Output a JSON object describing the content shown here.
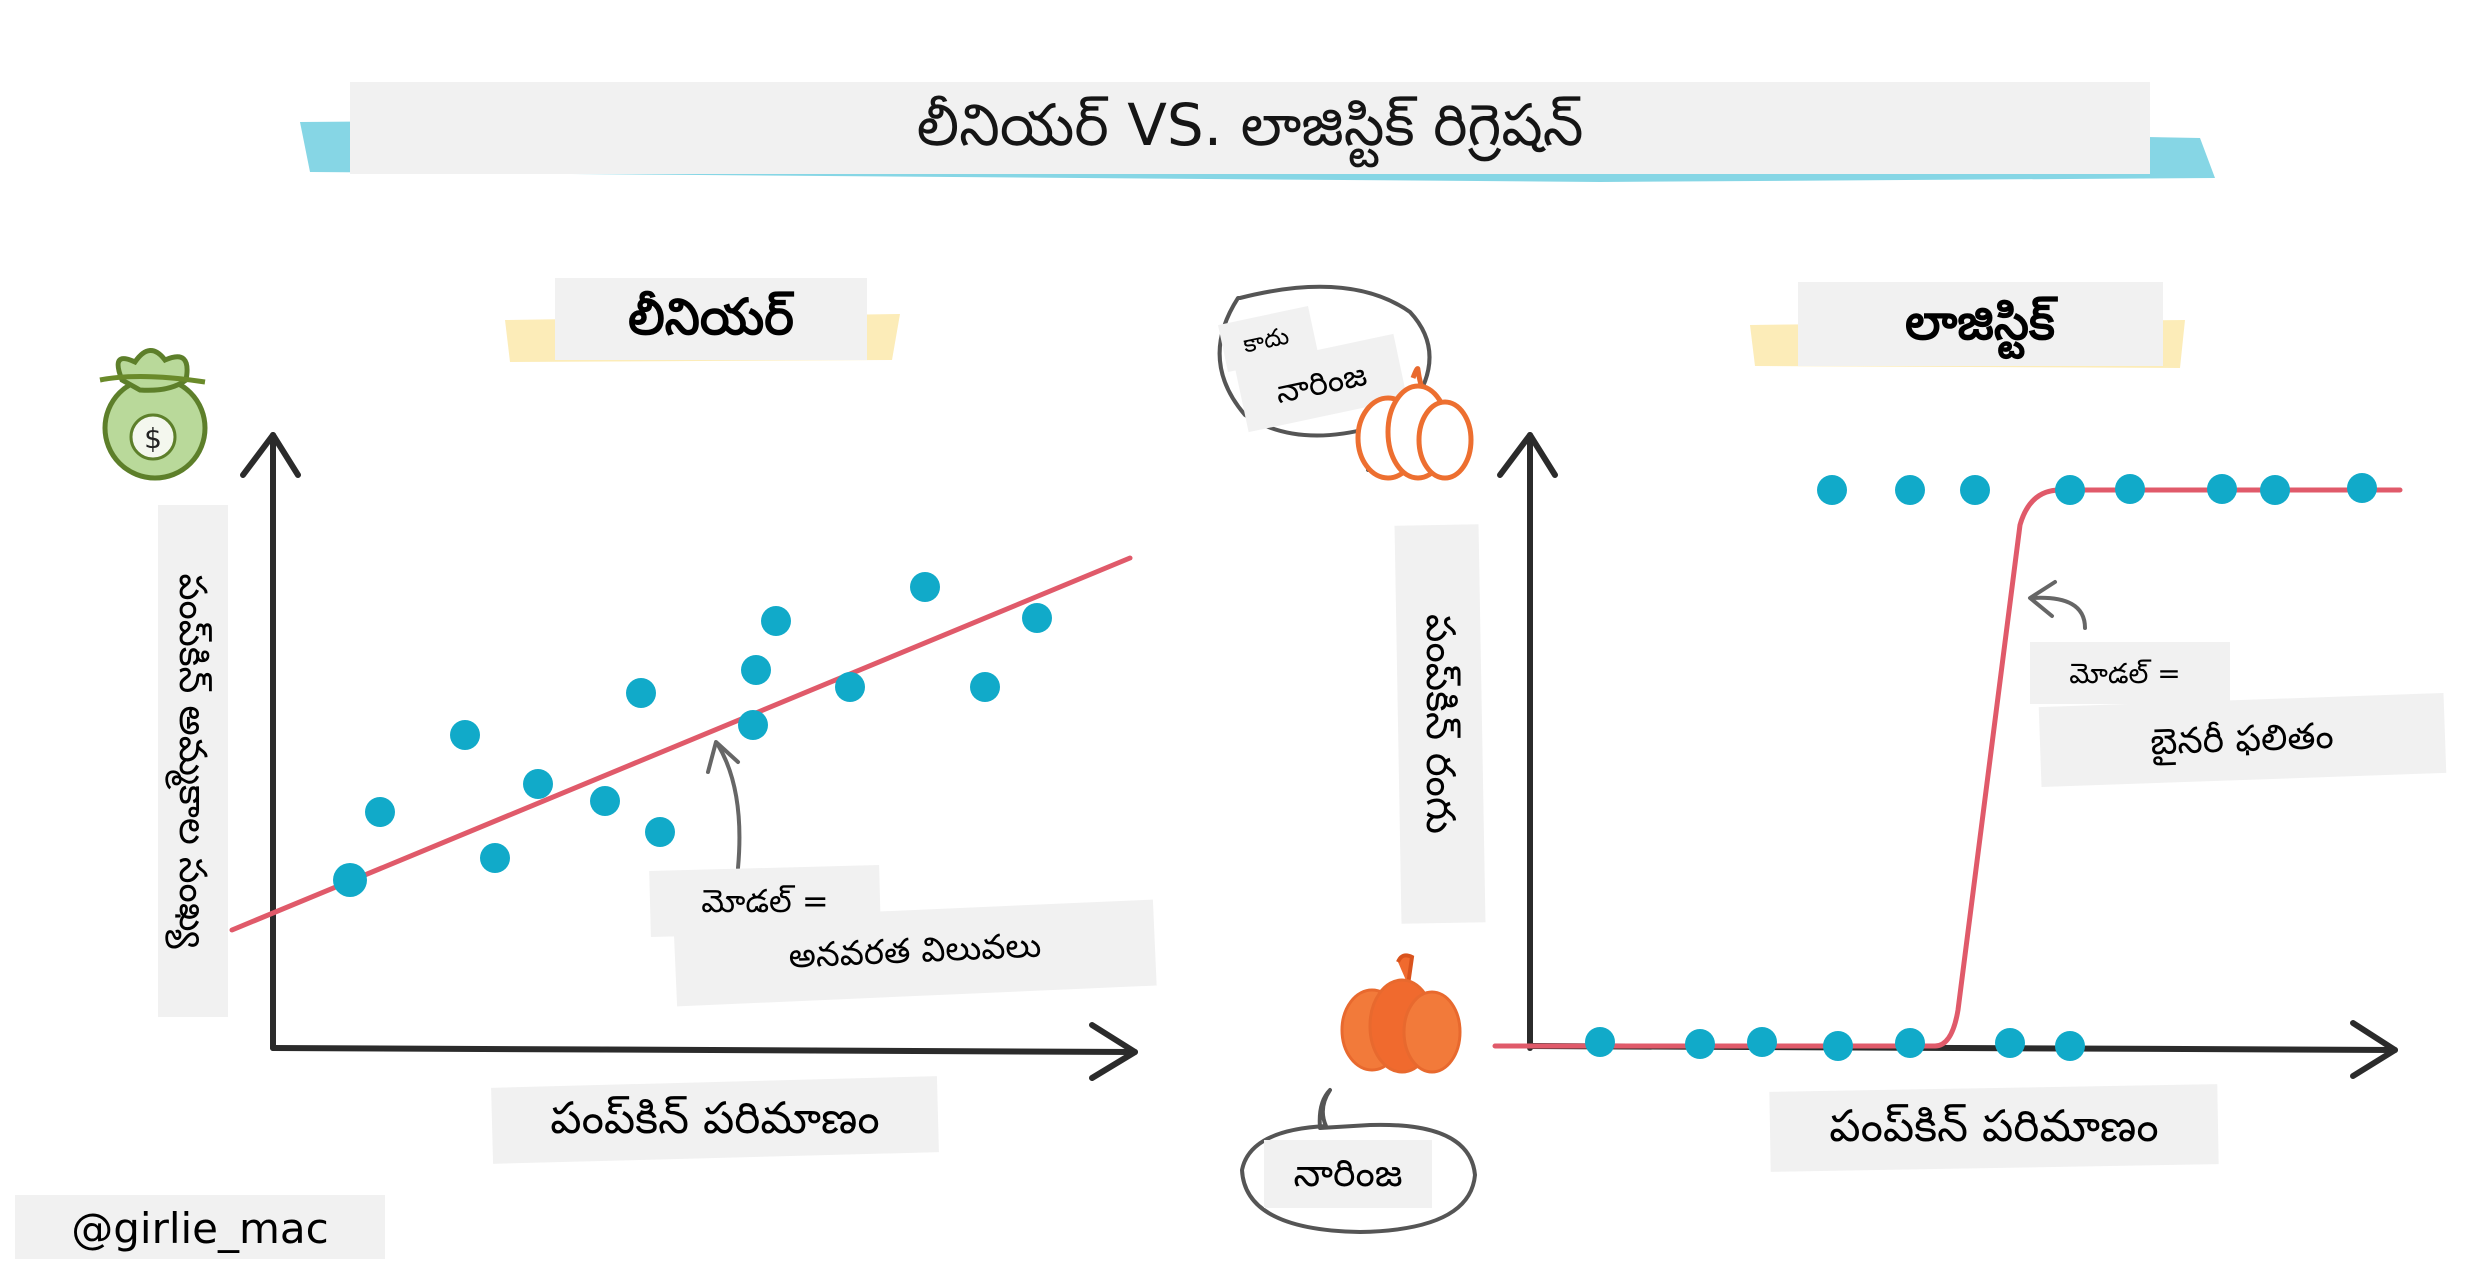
{
  "title": "లీనియర్ VS. లాజిస్టిక్ రిగ్రెషన్",
  "credit": "@girlie_mac",
  "colors": {
    "dot": "#11aac9",
    "line": "#e05a6a",
    "axis": "#2b2b2b",
    "title_strip": "#5ec8dc",
    "highlight": "#fbe7a6",
    "label_bg": "#f1f1f1",
    "pumpkin": "#f06a2e",
    "money_bag": "#8fbe5a"
  },
  "linear": {
    "heading": "లీనియర్",
    "y_axis_label": "పంప్‌కిన్ అమ్మకాల సంఖ్య",
    "x_axis_label": "పంప్‌కిన్ పరిమాణం",
    "model_label": "మోడల్ =",
    "model_value": "అనవరత విలువలు",
    "icon": "money-bag-icon",
    "icon_symbol": "$"
  },
  "logistic": {
    "heading": "లాజిస్టిక్",
    "y_axis_label": "పంప్‌కిన్ రంగు",
    "x_axis_label": "పంప్‌కిన్ పరిమాణం",
    "model_label": "మోడల్ =",
    "model_value": "బైనరీ ఫలితం",
    "bubble_top_small": "కాదు",
    "bubble_top_large": "నారింజ",
    "bubble_bottom": "నారింజ",
    "top_icon": "white-pumpkin-icon",
    "bottom_icon": "orange-pumpkin-icon"
  }
}
